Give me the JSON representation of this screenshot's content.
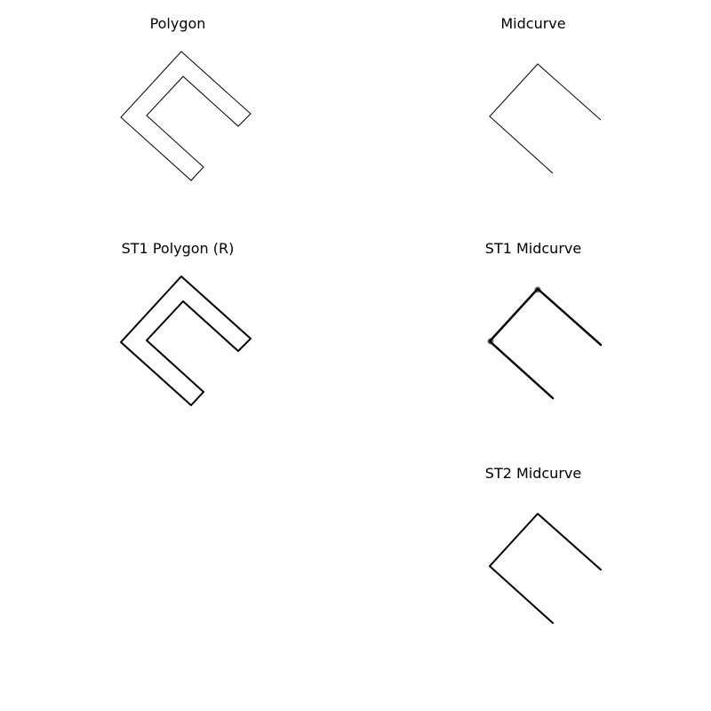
{
  "panels": {
    "polygon": {
      "title": "Polygon"
    },
    "midcurve": {
      "title": "Midcurve"
    },
    "st1_polygon": {
      "title": "ST1 Polygon (R)"
    },
    "st1_midcurve": {
      "title": "ST1 Midcurve"
    },
    "st2_midcurve": {
      "title": "ST2 Midcurve"
    }
  },
  "colors": {
    "stroke": "#000000",
    "background": "#ffffff"
  }
}
